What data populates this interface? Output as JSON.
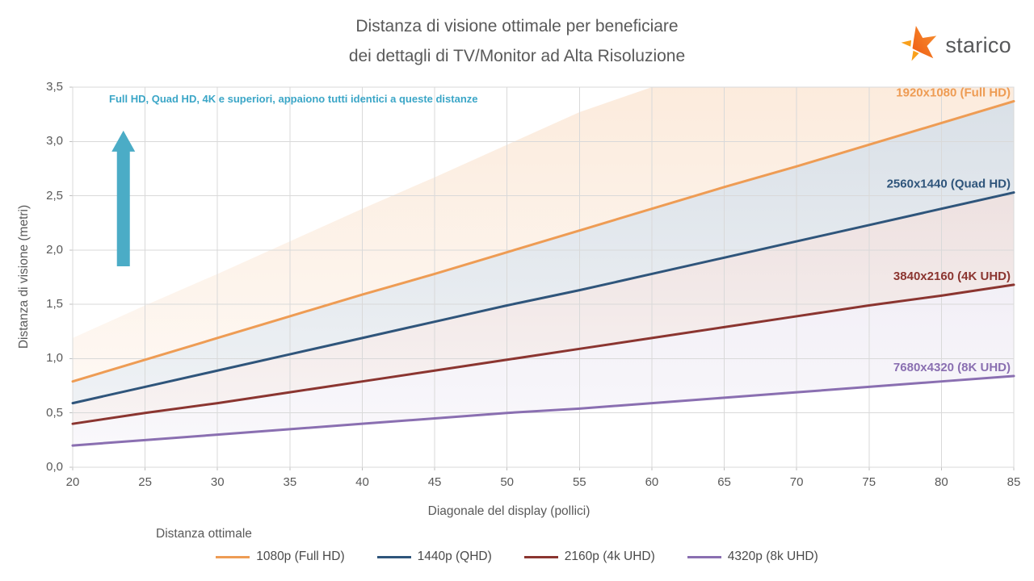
{
  "header": {
    "title_line1": "Distanza di visione ottimale per beneficiare",
    "title_line2": "dei dettagli di TV/Monitor ad Alta Risoluzione",
    "logo_text": "starico"
  },
  "annotation": {
    "text": "Full HD, Quad HD, 4K e superiori, appaiono tutti identici a queste distanze",
    "color": "#3ba6c7",
    "arrow": {
      "x_inches": 23.5,
      "y_from_m": 1.85,
      "y_to_m": 3.1,
      "color": "#4bacc6"
    }
  },
  "chart_data": {
    "type": "line",
    "title": "Distanza di visione ottimale per beneficiare dei dettagli di TV/Monitor ad Alta Risoluzione",
    "xlabel": "Diagonale del display (pollici)",
    "ylabel": "Distanza di visione (metri)",
    "xlim": [
      20,
      85
    ],
    "ylim": [
      0,
      3.5
    ],
    "grid": true,
    "legend_title": "Distanza ottimale",
    "legend_position": "bottom",
    "x_ticks": [
      20,
      25,
      30,
      35,
      40,
      45,
      50,
      55,
      60,
      65,
      70,
      75,
      80,
      85
    ],
    "x_tick_labels": [
      "20",
      "25",
      "30",
      "35",
      "40",
      "45",
      "50",
      "55",
      "60",
      "65",
      "70",
      "75",
      "80",
      "85"
    ],
    "y_ticks": [
      0,
      0.5,
      1.0,
      1.5,
      2.0,
      2.5,
      3.0,
      3.5
    ],
    "y_tick_labels": [
      "0,0",
      "0,5",
      "1,0",
      "1,5",
      "2,0",
      "2,5",
      "3,0",
      "3,5"
    ],
    "x": [
      20,
      25,
      30,
      35,
      40,
      45,
      50,
      55,
      60,
      65,
      70,
      75,
      80,
      85
    ],
    "series": [
      {
        "name": "1080p (Full HD)",
        "line_label": "1920x1080 (Full HD)",
        "color": "#ee9c54",
        "values": [
          0.79,
          0.99,
          1.19,
          1.39,
          1.59,
          1.78,
          1.98,
          2.18,
          2.38,
          2.58,
          2.77,
          2.97,
          3.17,
          3.37
        ]
      },
      {
        "name": "1440p (QHD)",
        "line_label": "2560x1440 (Quad HD)",
        "color": "#2f557b",
        "values": [
          0.59,
          0.74,
          0.89,
          1.04,
          1.19,
          1.34,
          1.49,
          1.63,
          1.78,
          1.93,
          2.08,
          2.23,
          2.38,
          2.53
        ]
      },
      {
        "name": "2160p (4k UHD)",
        "line_label": "3840x2160 (4K UHD)",
        "color": "#8b3530",
        "values": [
          0.4,
          0.5,
          0.59,
          0.69,
          0.79,
          0.89,
          0.99,
          1.09,
          1.19,
          1.29,
          1.39,
          1.49,
          1.58,
          1.68
        ]
      },
      {
        "name": "4320p (8k UHD)",
        "line_label": "7680x4320 (8K UHD)",
        "color": "#8a6fb1",
        "values": [
          0.2,
          0.25,
          0.3,
          0.35,
          0.4,
          0.45,
          0.5,
          0.54,
          0.59,
          0.64,
          0.69,
          0.74,
          0.79,
          0.84
        ]
      }
    ],
    "shaded_band_upper": {
      "description": "upper edge of shaded fan above Full HD line, clipped at ylim max",
      "values": [
        1.19,
        1.49,
        1.78,
        2.08,
        2.38,
        2.67,
        2.97,
        3.27,
        3.57,
        3.86,
        4.16,
        4.46,
        4.75,
        5.05
      ]
    },
    "bands": [
      {
        "from": "upper",
        "to": 0,
        "color": "#ee9c54",
        "op_top": 0.2,
        "op_bottom": 0.07
      },
      {
        "from": 0,
        "to": 1,
        "color": "#31567d",
        "op_top": 0.18,
        "op_bottom": 0.08
      },
      {
        "from": 1,
        "to": 2,
        "color": "#8c3732",
        "op_top": 0.15,
        "op_bottom": 0.06
      },
      {
        "from": 2,
        "to": 3,
        "color": "#8a6fb1",
        "op_top": 0.11,
        "op_bottom": 0.05
      }
    ],
    "grid_color": "#d9d9d9",
    "axis_color": "#bfbfbf"
  }
}
